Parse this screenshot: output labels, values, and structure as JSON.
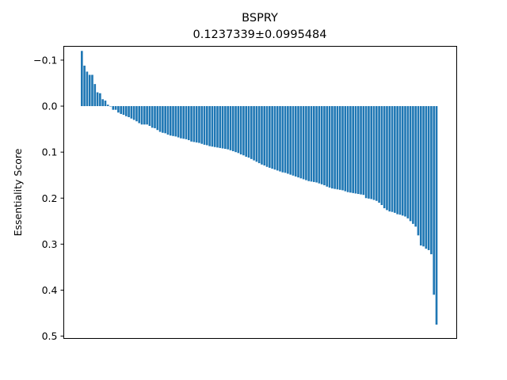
{
  "chart_data": {
    "type": "bar",
    "title": "BSPRY",
    "subtitle": "0.1237339±0.0995484",
    "xlabel": "",
    "ylabel": "Essentiality Score",
    "y_inverted": true,
    "ylim": [
      0.505,
      -0.13
    ],
    "yticks": [
      -0.1,
      0.0,
      0.1,
      0.2,
      0.3,
      0.4,
      0.5
    ],
    "ytick_labels": [
      "−0.1",
      "0.0",
      "0.1",
      "0.2",
      "0.3",
      "0.4",
      "0.5"
    ],
    "x_ticks_visible": false,
    "grid": false,
    "bar_color": "#1f77b4",
    "values": [
      -0.12,
      -0.088,
      -0.075,
      -0.068,
      -0.068,
      -0.048,
      -0.03,
      -0.028,
      -0.015,
      -0.012,
      -0.003,
      0.0,
      0.008,
      0.008,
      0.014,
      0.017,
      0.019,
      0.022,
      0.024,
      0.027,
      0.03,
      0.033,
      0.037,
      0.04,
      0.04,
      0.04,
      0.043,
      0.047,
      0.048,
      0.052,
      0.056,
      0.058,
      0.059,
      0.062,
      0.064,
      0.065,
      0.066,
      0.068,
      0.07,
      0.071,
      0.072,
      0.074,
      0.077,
      0.078,
      0.079,
      0.08,
      0.082,
      0.084,
      0.085,
      0.087,
      0.088,
      0.089,
      0.09,
      0.091,
      0.092,
      0.093,
      0.094,
      0.096,
      0.098,
      0.1,
      0.102,
      0.105,
      0.107,
      0.11,
      0.112,
      0.115,
      0.118,
      0.121,
      0.124,
      0.127,
      0.129,
      0.132,
      0.134,
      0.136,
      0.138,
      0.14,
      0.142,
      0.144,
      0.145,
      0.147,
      0.149,
      0.151,
      0.153,
      0.155,
      0.157,
      0.159,
      0.161,
      0.163,
      0.164,
      0.165,
      0.166,
      0.168,
      0.17,
      0.172,
      0.175,
      0.177,
      0.179,
      0.18,
      0.181,
      0.182,
      0.183,
      0.185,
      0.187,
      0.188,
      0.189,
      0.19,
      0.191,
      0.192,
      0.193,
      0.2,
      0.201,
      0.202,
      0.204,
      0.206,
      0.21,
      0.215,
      0.222,
      0.226,
      0.229,
      0.23,
      0.232,
      0.235,
      0.236,
      0.238,
      0.24,
      0.244,
      0.25,
      0.256,
      0.262,
      0.281,
      0.303,
      0.305,
      0.31,
      0.313,
      0.322,
      0.41,
      0.475
    ]
  }
}
